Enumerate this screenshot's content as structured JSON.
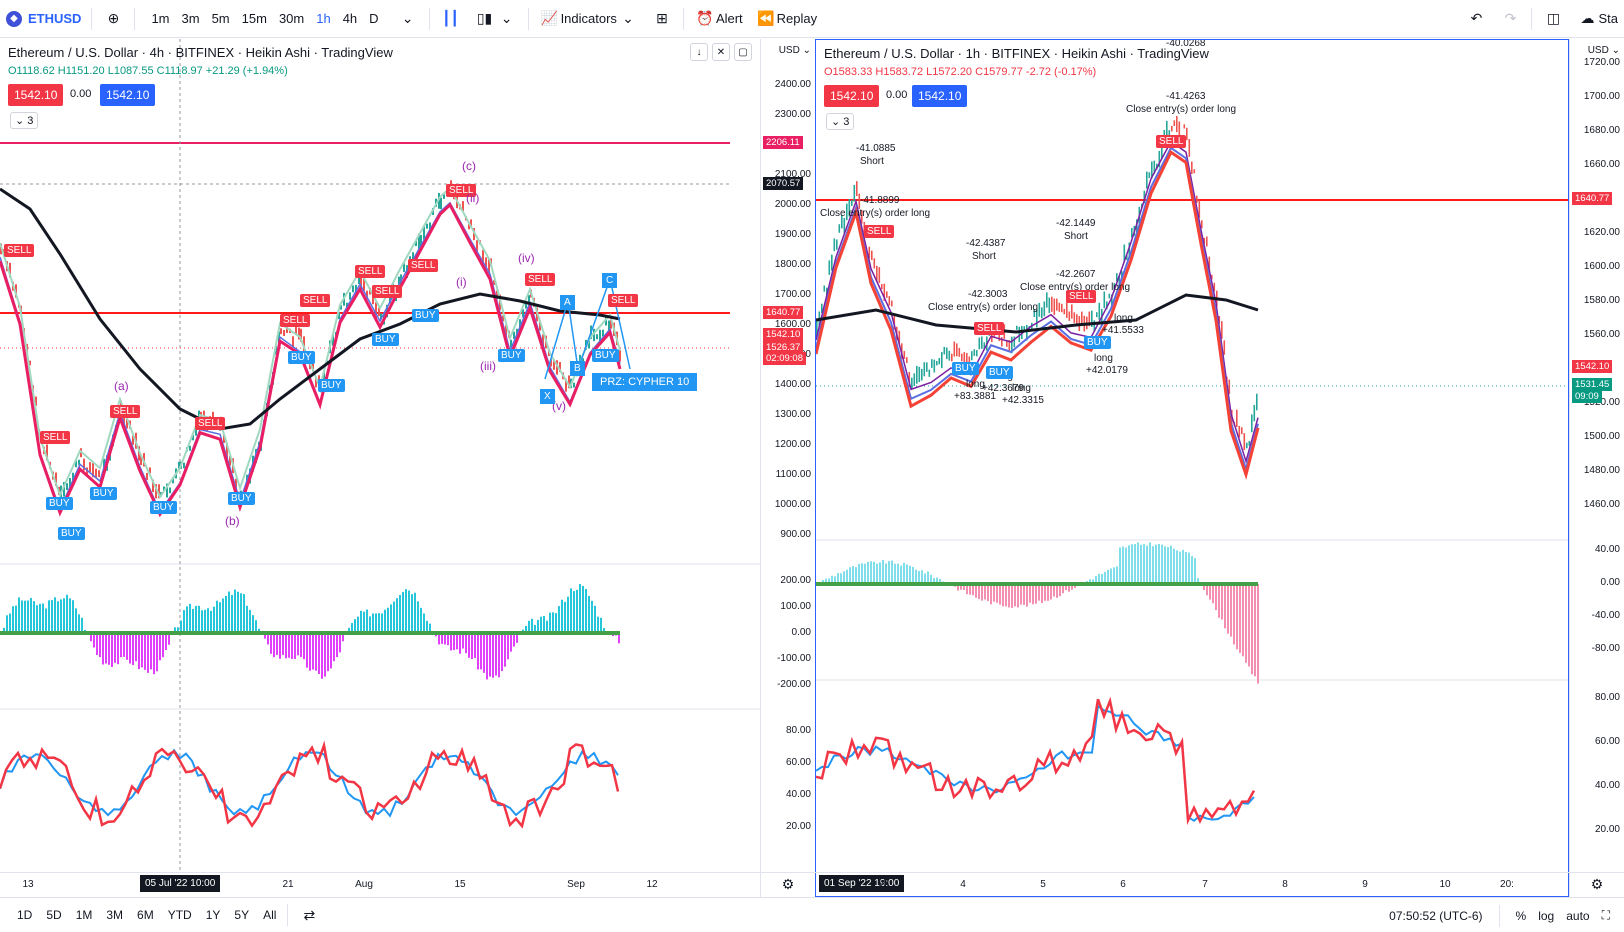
{
  "toolbar": {
    "symbol": "ETHUSD",
    "timeframes": [
      "1m",
      "3m",
      "5m",
      "15m",
      "30m",
      "1h",
      "4h",
      "D"
    ],
    "active_timeframe": "1h",
    "indicators_label": "Indicators",
    "alert_label": "Alert",
    "replay_label": "Replay",
    "right_label": "Sta"
  },
  "left_chart": {
    "title": "Ethereum / U.S. Dollar · 4h · BITFINEX · Heikin Ashi · TradingView",
    "ohlc": {
      "o": "O1118.62",
      "h": "H1151.20",
      "l": "L1087.55",
      "c": "C1118.97",
      "chg": "+21.29 (+1.94%)"
    },
    "bid": "1542.10",
    "spread": "0.00",
    "ask": "1542.10",
    "collapse": "3",
    "currency": "USD",
    "price_ticks": [
      "2400.00",
      "2300.00",
      "2100.00",
      "2000.00",
      "1900.00",
      "1800.00",
      "1700.00",
      "1600.00",
      "1500.00",
      "1400.00",
      "1300.00",
      "1200.00",
      "1100.00",
      "1000.00",
      "900.00"
    ],
    "price_badges": [
      {
        "text": "2206.11",
        "color": "#e91e63"
      },
      {
        "text": "2070.57",
        "color": "#131722"
      },
      {
        "text": "1640.77",
        "color": "#f23645"
      },
      {
        "text": "1542.10",
        "color": "#f23645"
      },
      {
        "text": "1526.37",
        "color": "#f23645"
      },
      {
        "text": "02:09:08",
        "color": "#f23645"
      }
    ],
    "osc_ticks": [
      "200.00",
      "100.00",
      "0.00",
      "-100.00",
      "-200.00"
    ],
    "rsi_ticks": [
      "80.00",
      "60.00",
      "40.00",
      "20.00"
    ],
    "time_labels": [
      "13",
      "21",
      "Aug",
      "15",
      "Sep",
      "12"
    ],
    "time_badge": "05 Jul '22   10:00",
    "waves": [
      "(a)",
      "(b)",
      "(c)",
      "(ii)",
      "(i)",
      "(iii)",
      "(iv)",
      "(v)"
    ],
    "pattern_points": [
      "A",
      "B",
      "C",
      "X"
    ],
    "prz": "PRZ: CYPHER 10",
    "sell": "SELL",
    "buy": "BUY"
  },
  "right_chart": {
    "title": "Ethereum / U.S. Dollar · 1h · BITFINEX · Heikin Ashi · TradingView",
    "ohlc": {
      "o": "O1583.33",
      "h": "H1583.72",
      "l": "L1572.20",
      "c": "C1579.77",
      "chg": "-2.72 (-0.17%)"
    },
    "bid": "1542.10",
    "spread": "0.00",
    "ask": "1542.10",
    "collapse": "3",
    "currency": "USD",
    "price_ticks": [
      "1720.00",
      "1700.00",
      "1680.00",
      "1660.00",
      "1620.00",
      "1600.00",
      "1580.00",
      "1560.00",
      "1520.00",
      "1500.00",
      "1480.00",
      "1460.00"
    ],
    "price_badges": [
      {
        "text": "1640.77",
        "color": "#f23645"
      },
      {
        "text": "1542.10",
        "color": "#f23645"
      },
      {
        "text": "1531.45",
        "color": "#089981"
      },
      {
        "text": "09:09",
        "color": "#089981"
      }
    ],
    "osc_ticks": [
      "40.00",
      "0.00",
      "-40.00",
      "-80.00"
    ],
    "rsi_ticks": [
      "80.00",
      "60.00",
      "40.00",
      "20.00"
    ],
    "time_labels": [
      "3",
      "4",
      "5",
      "6",
      "7",
      "8",
      "9",
      "10",
      "20:"
    ],
    "time_badge": "01 Sep '22   19:00",
    "notes": [
      {
        "text": "-41.0885"
      },
      {
        "text": "Short"
      },
      {
        "text": "-41.8899"
      },
      {
        "text": "Close entry(s) order long"
      },
      {
        "text": "-42.4387"
      },
      {
        "text": "Short"
      },
      {
        "text": "-42.3003"
      },
      {
        "text": "Close entry(s) order long"
      },
      {
        "text": "-42.1449"
      },
      {
        "text": "Short"
      },
      {
        "text": "-42.2607"
      },
      {
        "text": "Close entry(s) order long"
      },
      {
        "text": "-40.0268"
      },
      {
        "text": "-41.4263"
      },
      {
        "text": "Close entry(s) order long"
      },
      {
        "text": "long"
      },
      {
        "text": "+83.3881"
      },
      {
        "text": "long"
      },
      {
        "text": "+42.3679"
      },
      {
        "text": "long"
      },
      {
        "text": "+42.3315"
      },
      {
        "text": "long"
      },
      {
        "text": "+41.5533"
      },
      {
        "text": "long"
      },
      {
        "text": "+42.0179"
      }
    ],
    "sell": "SELL",
    "buy": "BUY"
  },
  "bottombar": {
    "ranges": [
      "1D",
      "5D",
      "1M",
      "3M",
      "6M",
      "YTD",
      "1Y",
      "5Y",
      "All"
    ],
    "clock": "07:50:52 (UTC-6)",
    "percent": "%",
    "log": "log",
    "auto": "auto"
  },
  "colors": {
    "up": "#089981",
    "down": "#f23645",
    "accent": "#2962ff",
    "ma_black": "#131722",
    "ma_pink": "#e91e63",
    "hline_red": "#ff1a1a"
  }
}
